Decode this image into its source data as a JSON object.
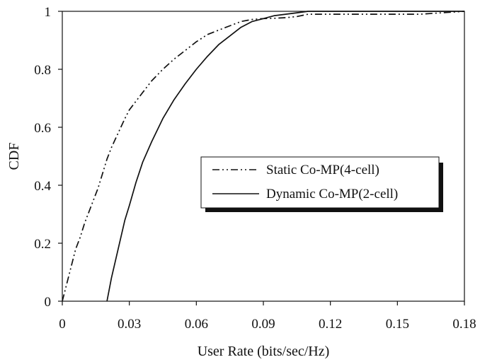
{
  "chart_data": {
    "type": "line",
    "title": "",
    "xlabel": "User Rate (bits/sec/Hz)",
    "ylabel": "CDF",
    "xlim": [
      0,
      0.18
    ],
    "ylim": [
      0,
      1
    ],
    "x_ticks": [
      "0",
      "0.03",
      "0.06",
      "0.09",
      "0.12",
      "0.15",
      "0.18"
    ],
    "y_ticks": [
      "0",
      "0.2",
      "0.4",
      "0.6",
      "0.8",
      "1"
    ],
    "grid": false,
    "legend_position": "center-right",
    "series": [
      {
        "name": "Static Co-MP(4-cell)",
        "style": "dash-dot",
        "color": "#111111",
        "x": [
          0,
          0.002,
          0.004,
          0.006,
          0.008,
          0.01,
          0.012,
          0.014,
          0.016,
          0.018,
          0.02,
          0.022,
          0.025,
          0.028,
          0.03,
          0.035,
          0.04,
          0.045,
          0.05,
          0.055,
          0.06,
          0.065,
          0.07,
          0.075,
          0.08,
          0.085,
          0.09,
          0.095,
          0.1,
          0.105,
          0.11,
          0.12,
          0.13,
          0.14,
          0.15,
          0.16,
          0.17,
          0.18
        ],
        "y": [
          0,
          0.06,
          0.12,
          0.18,
          0.22,
          0.27,
          0.31,
          0.35,
          0.39,
          0.44,
          0.49,
          0.53,
          0.58,
          0.63,
          0.66,
          0.71,
          0.76,
          0.8,
          0.835,
          0.865,
          0.895,
          0.92,
          0.935,
          0.95,
          0.965,
          0.972,
          0.975,
          0.976,
          0.978,
          0.982,
          0.99,
          0.99,
          0.99,
          0.99,
          0.99,
          0.99,
          0.995,
          1.0
        ]
      },
      {
        "name": "Dynamic Co-MP(2-cell)",
        "style": "solid",
        "color": "#111111",
        "x": [
          0.02,
          0.022,
          0.025,
          0.028,
          0.03,
          0.033,
          0.036,
          0.04,
          0.045,
          0.05,
          0.055,
          0.06,
          0.065,
          0.07,
          0.075,
          0.08,
          0.085,
          0.09,
          0.095,
          0.1,
          0.105,
          0.11,
          0.12,
          0.13,
          0.14,
          0.15,
          0.16,
          0.17,
          0.18
        ],
        "y": [
          0,
          0.08,
          0.18,
          0.28,
          0.33,
          0.41,
          0.48,
          0.55,
          0.63,
          0.695,
          0.75,
          0.8,
          0.845,
          0.885,
          0.915,
          0.945,
          0.965,
          0.975,
          0.985,
          0.99,
          0.995,
          1.0,
          1.0,
          1.0,
          1.0,
          1.0,
          1.0,
          1.0,
          1.0
        ]
      }
    ]
  }
}
